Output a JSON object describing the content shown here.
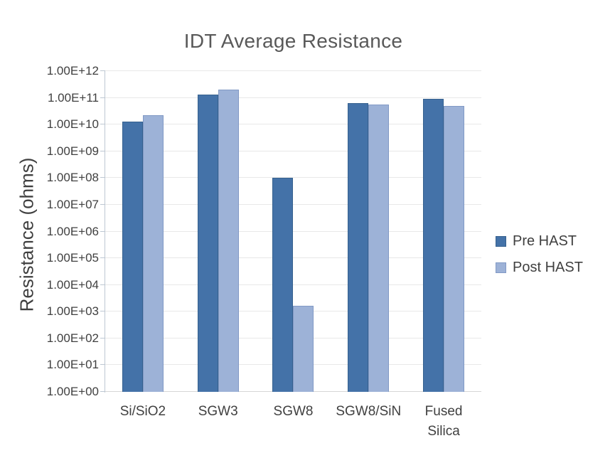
{
  "chart_data": {
    "type": "bar",
    "title": "IDT Average Resistance",
    "ylabel": "Resistance (ohms)",
    "xlabel": "",
    "y_scale": "log",
    "ylim": [
      1,
      1000000000000.0
    ],
    "grid": true,
    "legend_position": "right",
    "y_ticks": [
      "1.00E+00",
      "1.00E+01",
      "1.00E+02",
      "1.00E+03",
      "1.00E+04",
      "1.00E+05",
      "1.00E+06",
      "1.00E+07",
      "1.00E+08",
      "1.00E+09",
      "1.00E+10",
      "1.00E+11",
      "1.00E+12"
    ],
    "categories": [
      "Si/SiO2",
      "SGW3",
      "SGW8",
      "SGW8/SiN",
      "Fused Silica"
    ],
    "series": [
      {
        "name": "Pre HAST",
        "color": "#4472a8",
        "border_color": "#36618e",
        "values": [
          13000000000.0,
          130000000000.0,
          100000000.0,
          65000000000.0,
          90000000000.0
        ]
      },
      {
        "name": "Post HAST",
        "color": "#9db2d7",
        "border_color": "#8199c5",
        "values": [
          22000000000.0,
          200000000000.0,
          1700.0,
          55000000000.0,
          50000000000.0
        ]
      }
    ]
  },
  "page": {
    "background": "#ffffff",
    "text_color": "#404040",
    "title_color": "#595959"
  }
}
